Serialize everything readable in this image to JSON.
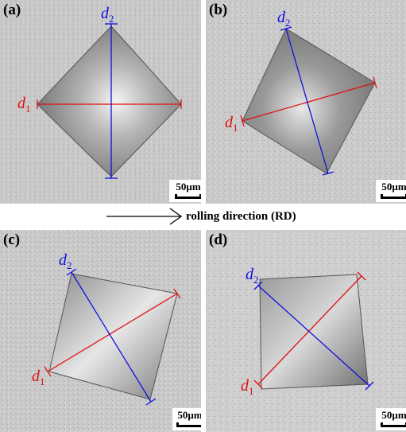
{
  "panels": [
    {
      "label": "(a)",
      "scale": "50µm",
      "d1": "d",
      "d1_sub": "1",
      "d2": "d",
      "d2_sub": "2"
    },
    {
      "label": "(b)",
      "scale": "50µm",
      "d1": "d",
      "d1_sub": "1",
      "d2": "d",
      "d2_sub": "2"
    },
    {
      "label": "(c)",
      "scale": "50µm",
      "d1": "d",
      "d1_sub": "1",
      "d2": "d",
      "d2_sub": "2"
    },
    {
      "label": "(d)",
      "scale": "50µm",
      "d1": "d",
      "d1_sub": "1",
      "d2": "d",
      "d2_sub": "2"
    }
  ],
  "direction_label": "rolling direction (RD)",
  "colors": {
    "d1_line": "#e01010",
    "d2_line": "#1010e0"
  }
}
